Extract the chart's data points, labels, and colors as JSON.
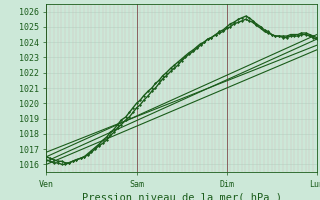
{
  "title": "",
  "xlabel": "Pression niveau de la mer( hPa )",
  "xtick_labels": [
    "Ven",
    "Sam",
    "Dim",
    "Lun"
  ],
  "xtick_positions": [
    0,
    1,
    2,
    3
  ],
  "ylim": [
    1015.5,
    1026.5
  ],
  "xlim": [
    0,
    3
  ],
  "yticks": [
    1016,
    1017,
    1018,
    1019,
    1020,
    1021,
    1022,
    1023,
    1024,
    1025,
    1026
  ],
  "background_color": "#cce8d8",
  "grid_color_h": "#b8d8c8",
  "grid_color_v_minor": "#d4b8b8",
  "grid_color_v_major": "#8b6060",
  "line_color": "#1a5c1a",
  "lines": [
    {
      "x": [
        0.0,
        0.04,
        0.08,
        0.13,
        0.17,
        0.21,
        0.25,
        0.29,
        0.33,
        0.38,
        0.42,
        0.46,
        0.5,
        0.54,
        0.58,
        0.63,
        0.67,
        0.71,
        0.75,
        0.79,
        0.83,
        0.88,
        0.92,
        0.96,
        1.0,
        1.04,
        1.08,
        1.13,
        1.17,
        1.21,
        1.25,
        1.29,
        1.33,
        1.38,
        1.42,
        1.46,
        1.5,
        1.54,
        1.58,
        1.63,
        1.67,
        1.71,
        1.75,
        1.79,
        1.83,
        1.88,
        1.92,
        1.96,
        2.0,
        2.04,
        2.08,
        2.13,
        2.17,
        2.21,
        2.25,
        2.29,
        2.33,
        2.38,
        2.42,
        2.46,
        2.5,
        2.54,
        2.58,
        2.63,
        2.67,
        2.71,
        2.75,
        2.79,
        2.83,
        2.88,
        2.92,
        2.96,
        3.0
      ],
      "y": [
        1016.3,
        1016.2,
        1016.1,
        1016.1,
        1016.0,
        1016.0,
        1016.1,
        1016.2,
        1016.3,
        1016.4,
        1016.5,
        1016.6,
        1016.8,
        1017.0,
        1017.2,
        1017.4,
        1017.6,
        1017.9,
        1018.1,
        1018.4,
        1018.6,
        1018.9,
        1019.1,
        1019.4,
        1019.7,
        1019.9,
        1020.2,
        1020.5,
        1020.8,
        1021.0,
        1021.3,
        1021.6,
        1021.8,
        1022.1,
        1022.3,
        1022.5,
        1022.8,
        1023.0,
        1023.2,
        1023.4,
        1023.6,
        1023.8,
        1024.0,
        1024.2,
        1024.3,
        1024.5,
        1024.7,
        1024.8,
        1025.0,
        1025.2,
        1025.3,
        1025.5,
        1025.6,
        1025.7,
        1025.6,
        1025.4,
        1025.2,
        1025.0,
        1024.8,
        1024.7,
        1024.5,
        1024.4,
        1024.4,
        1024.3,
        1024.3,
        1024.4,
        1024.4,
        1024.4,
        1024.5,
        1024.5,
        1024.4,
        1024.3,
        1024.2
      ],
      "marker": "D",
      "lw": 1.0,
      "ms": 1.5
    },
    {
      "x": [
        0.0,
        0.04,
        0.08,
        0.13,
        0.17,
        0.21,
        0.25,
        0.29,
        0.33,
        0.38,
        0.42,
        0.46,
        0.5,
        0.54,
        0.58,
        0.63,
        0.67,
        0.71,
        0.75,
        0.79,
        0.83,
        0.88,
        0.92,
        0.96,
        1.0,
        1.04,
        1.08,
        1.13,
        1.17,
        1.21,
        1.25,
        1.29,
        1.33,
        1.38,
        1.42,
        1.46,
        1.5,
        1.54,
        1.58,
        1.63,
        1.67,
        1.71,
        1.75,
        1.79,
        1.83,
        1.88,
        1.92,
        1.96,
        2.0,
        2.04,
        2.08,
        2.13,
        2.17,
        2.21,
        2.25,
        2.29,
        2.33,
        2.38,
        2.42,
        2.46,
        2.5,
        2.54,
        2.58,
        2.63,
        2.67,
        2.71,
        2.75,
        2.79,
        2.83,
        2.88,
        2.92,
        2.96,
        3.0
      ],
      "y": [
        1016.5,
        1016.4,
        1016.3,
        1016.2,
        1016.2,
        1016.1,
        1016.1,
        1016.2,
        1016.3,
        1016.4,
        1016.5,
        1016.7,
        1016.9,
        1017.1,
        1017.3,
        1017.6,
        1017.8,
        1018.1,
        1018.3,
        1018.6,
        1018.9,
        1019.1,
        1019.4,
        1019.7,
        1020.0,
        1020.2,
        1020.5,
        1020.8,
        1021.0,
        1021.3,
        1021.5,
        1021.8,
        1022.0,
        1022.3,
        1022.5,
        1022.7,
        1022.9,
        1023.1,
        1023.3,
        1023.5,
        1023.7,
        1023.9,
        1024.0,
        1024.2,
        1024.3,
        1024.5,
        1024.6,
        1024.7,
        1024.9,
        1025.0,
        1025.2,
        1025.3,
        1025.4,
        1025.5,
        1025.4,
        1025.3,
        1025.1,
        1024.9,
        1024.7,
        1024.6,
        1024.5,
        1024.4,
        1024.4,
        1024.4,
        1024.4,
        1024.5,
        1024.5,
        1024.5,
        1024.6,
        1024.6,
        1024.5,
        1024.4,
        1024.3
      ],
      "marker": "D",
      "lw": 1.0,
      "ms": 1.5
    },
    {
      "x": [
        0,
        3
      ],
      "y": [
        1016.2,
        1024.2
      ],
      "marker": null,
      "lw": 0.8,
      "ms": 0
    },
    {
      "x": [
        0,
        3
      ],
      "y": [
        1016.8,
        1023.8
      ],
      "marker": null,
      "lw": 0.8,
      "ms": 0
    },
    {
      "x": [
        0,
        3
      ],
      "y": [
        1016.5,
        1024.5
      ],
      "marker": null,
      "lw": 0.8,
      "ms": 0
    },
    {
      "x": [
        0,
        3
      ],
      "y": [
        1016.0,
        1023.5
      ],
      "marker": null,
      "lw": 0.8,
      "ms": 0
    }
  ],
  "fontsize_tick": 6,
  "fontsize_xlabel": 7.5
}
